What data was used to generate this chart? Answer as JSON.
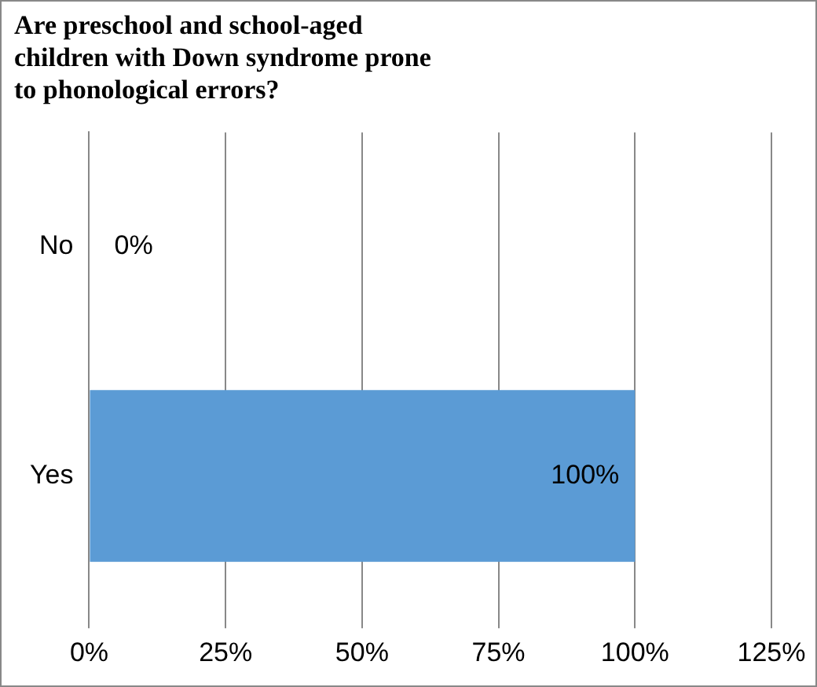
{
  "chart_data": {
    "type": "bar",
    "orientation": "horizontal",
    "title": "Are preschool and school-aged children with Down syndrome prone to phonological errors?",
    "categories": [
      "No",
      "Yes"
    ],
    "values": [
      0,
      100
    ],
    "color": "#5b9bd5",
    "value_labels": [
      "0%",
      "100%"
    ],
    "xlim": [
      0,
      125
    ],
    "xticks": [
      {
        "value": 0,
        "label": "0%"
      },
      {
        "value": 25,
        "label": "25%"
      },
      {
        "value": 50,
        "label": "50%"
      },
      {
        "value": 75,
        "label": "75%"
      },
      {
        "value": 100,
        "label": "100%"
      },
      {
        "value": 125,
        "label": "125%"
      }
    ],
    "grid": "x",
    "legend": false
  }
}
